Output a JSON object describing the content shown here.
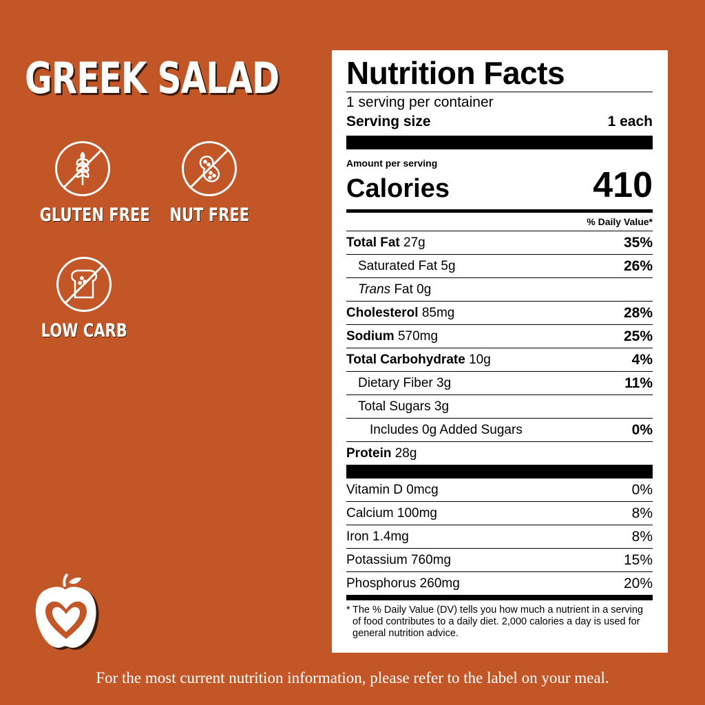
{
  "title": "GREEK SALAD",
  "badges": [
    {
      "label": "GLUTEN FREE",
      "icon": "wheat-crossed-icon"
    },
    {
      "label": "NUT FREE",
      "icon": "peanut-crossed-icon"
    },
    {
      "label": "LOW CARB",
      "icon": "bread-crossed-icon"
    }
  ],
  "colors": {
    "background": "#C25627",
    "panel": "#FFFFFF",
    "text": "#000000"
  },
  "nutrition": {
    "heading": "Nutrition Facts",
    "servings_per_container": "1 serving per container",
    "serving_size_label": "Serving size",
    "serving_size_value": "1 each",
    "amount_per_serving": "Amount per serving",
    "calories_label": "Calories",
    "calories_value": "410",
    "dv_header": "% Daily Value*",
    "total_fat": {
      "name": "Total Fat",
      "amount": "27g",
      "dv": "35%"
    },
    "saturated_fat": {
      "name": "Saturated Fat 5g",
      "dv": "26%"
    },
    "trans_fat": {
      "name_italic": "Trans",
      "name_rest": "Fat 0g"
    },
    "cholesterol": {
      "name": "Cholesterol",
      "amount": "85mg",
      "dv": "28%"
    },
    "sodium": {
      "name": "Sodium",
      "amount": "570mg",
      "dv": "25%"
    },
    "total_carb": {
      "name": "Total Carbohydrate",
      "amount": "10g",
      "dv": "4%"
    },
    "fiber": {
      "name": "Dietary Fiber 3g",
      "dv": "11%"
    },
    "sugars": {
      "name": "Total Sugars 3g"
    },
    "added_sugars": {
      "name": "Includes 0g Added Sugars",
      "dv": "0%"
    },
    "protein": {
      "name": "Protein",
      "amount": "28g"
    },
    "vitamins": [
      {
        "name": "Vitamin D 0mcg",
        "dv": "0%"
      },
      {
        "name": "Calcium 100mg",
        "dv": "8%"
      },
      {
        "name": "Iron 1.4mg",
        "dv": "8%"
      },
      {
        "name": "Potassium 760mg",
        "dv": "15%"
      },
      {
        "name": "Phosphorus 260mg",
        "dv": "20%"
      }
    ],
    "footnote_star": "*",
    "footnote": "The % Daily Value (DV) tells you how much a nutrient in a serving of food contributes to a daily diet. 2,000 calories a day is used for general nutrition advice."
  },
  "logo_icon": "apple-heart-logo-icon",
  "footer": "For the most current nutrition information, please refer to the label on your meal."
}
